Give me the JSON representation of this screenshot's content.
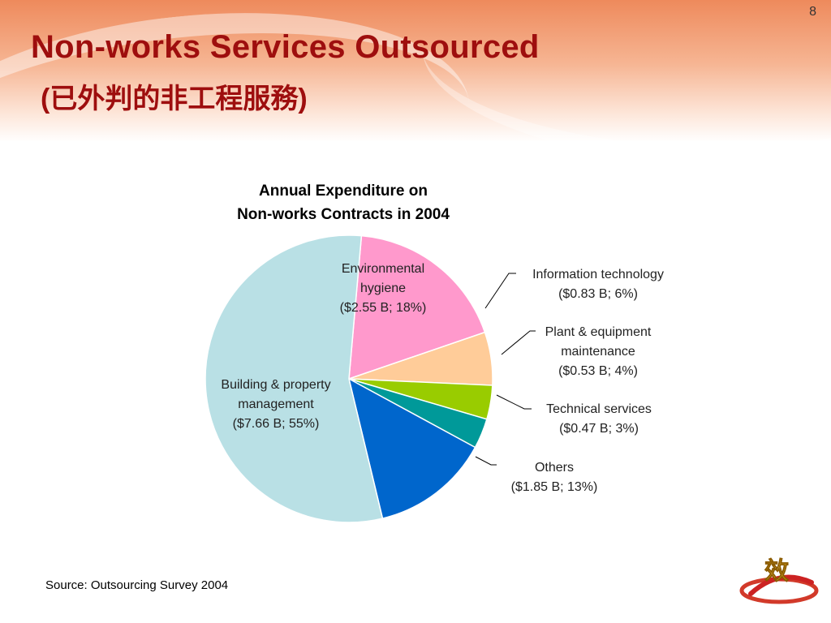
{
  "slide": {
    "number": "8",
    "title": "Non-works Services Outsourced",
    "subtitle": "(已外判的非工程服務)",
    "source": "Source: Outsourcing Survey 2004",
    "logo_char": "效"
  },
  "chart_data": {
    "type": "pie",
    "title": [
      "Annual Expenditure on",
      "Non-works Contracts in 2004"
    ],
    "unit": "$ B",
    "slices": [
      {
        "label": [
          "Environmental",
          "hygiene",
          "($2.55 B; 18%)"
        ],
        "value": 2.55,
        "percent": 18,
        "color": "#ff99cc"
      },
      {
        "label": [
          "Information technology",
          "($0.83 B; 6%)"
        ],
        "value": 0.83,
        "percent": 6,
        "color": "#ffcc99"
      },
      {
        "label": [
          "Plant & equipment",
          "maintenance",
          "($0.53 B; 4%)"
        ],
        "value": 0.53,
        "percent": 4,
        "color": "#99cc00"
      },
      {
        "label": [
          "Technical services",
          "($0.47 B; 3%)"
        ],
        "value": 0.47,
        "percent": 3,
        "color": "#009999"
      },
      {
        "label": [
          "Others",
          "($1.85 B; 13%)"
        ],
        "value": 1.85,
        "percent": 13,
        "color": "#0066cc"
      },
      {
        "label": [
          "Building & property",
          "management",
          "($7.66 B; 55%)"
        ],
        "value": 7.66,
        "percent": 55,
        "color": "#b9e0e5"
      }
    ]
  }
}
